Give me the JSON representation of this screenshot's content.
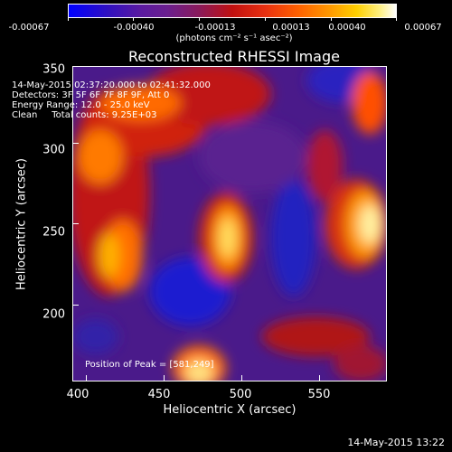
{
  "colorbar": {
    "ticks": [
      "-0.00067",
      "-0.00040",
      "-0.00013",
      "0.00013",
      "0.00040",
      "0.00067"
    ],
    "units": "(photons cm⁻² s⁻¹ asec⁻²)"
  },
  "title": "Reconstructed RHESSI Image",
  "info": {
    "line1": "14-May-2015 02:37:20.000 to 02:41:32.000",
    "line2": "Detectors: 3F 5F 6F 7F 8F 9F, Att 0",
    "line3": "Energy Range: 12.0 - 25.0 keV",
    "line4": "Clean     Total counts: 9.25E+03",
    "peak": "Position of Peak = [581,249]"
  },
  "axes": {
    "xlabel": "Heliocentric X (arcsec)",
    "ylabel": "Heliocentric Y (arcsec)",
    "xticks": [
      "400",
      "450",
      "500",
      "550"
    ],
    "yticks": [
      "350",
      "300",
      "250",
      "200"
    ]
  },
  "timestamp": "14-May-2015 13:22"
}
